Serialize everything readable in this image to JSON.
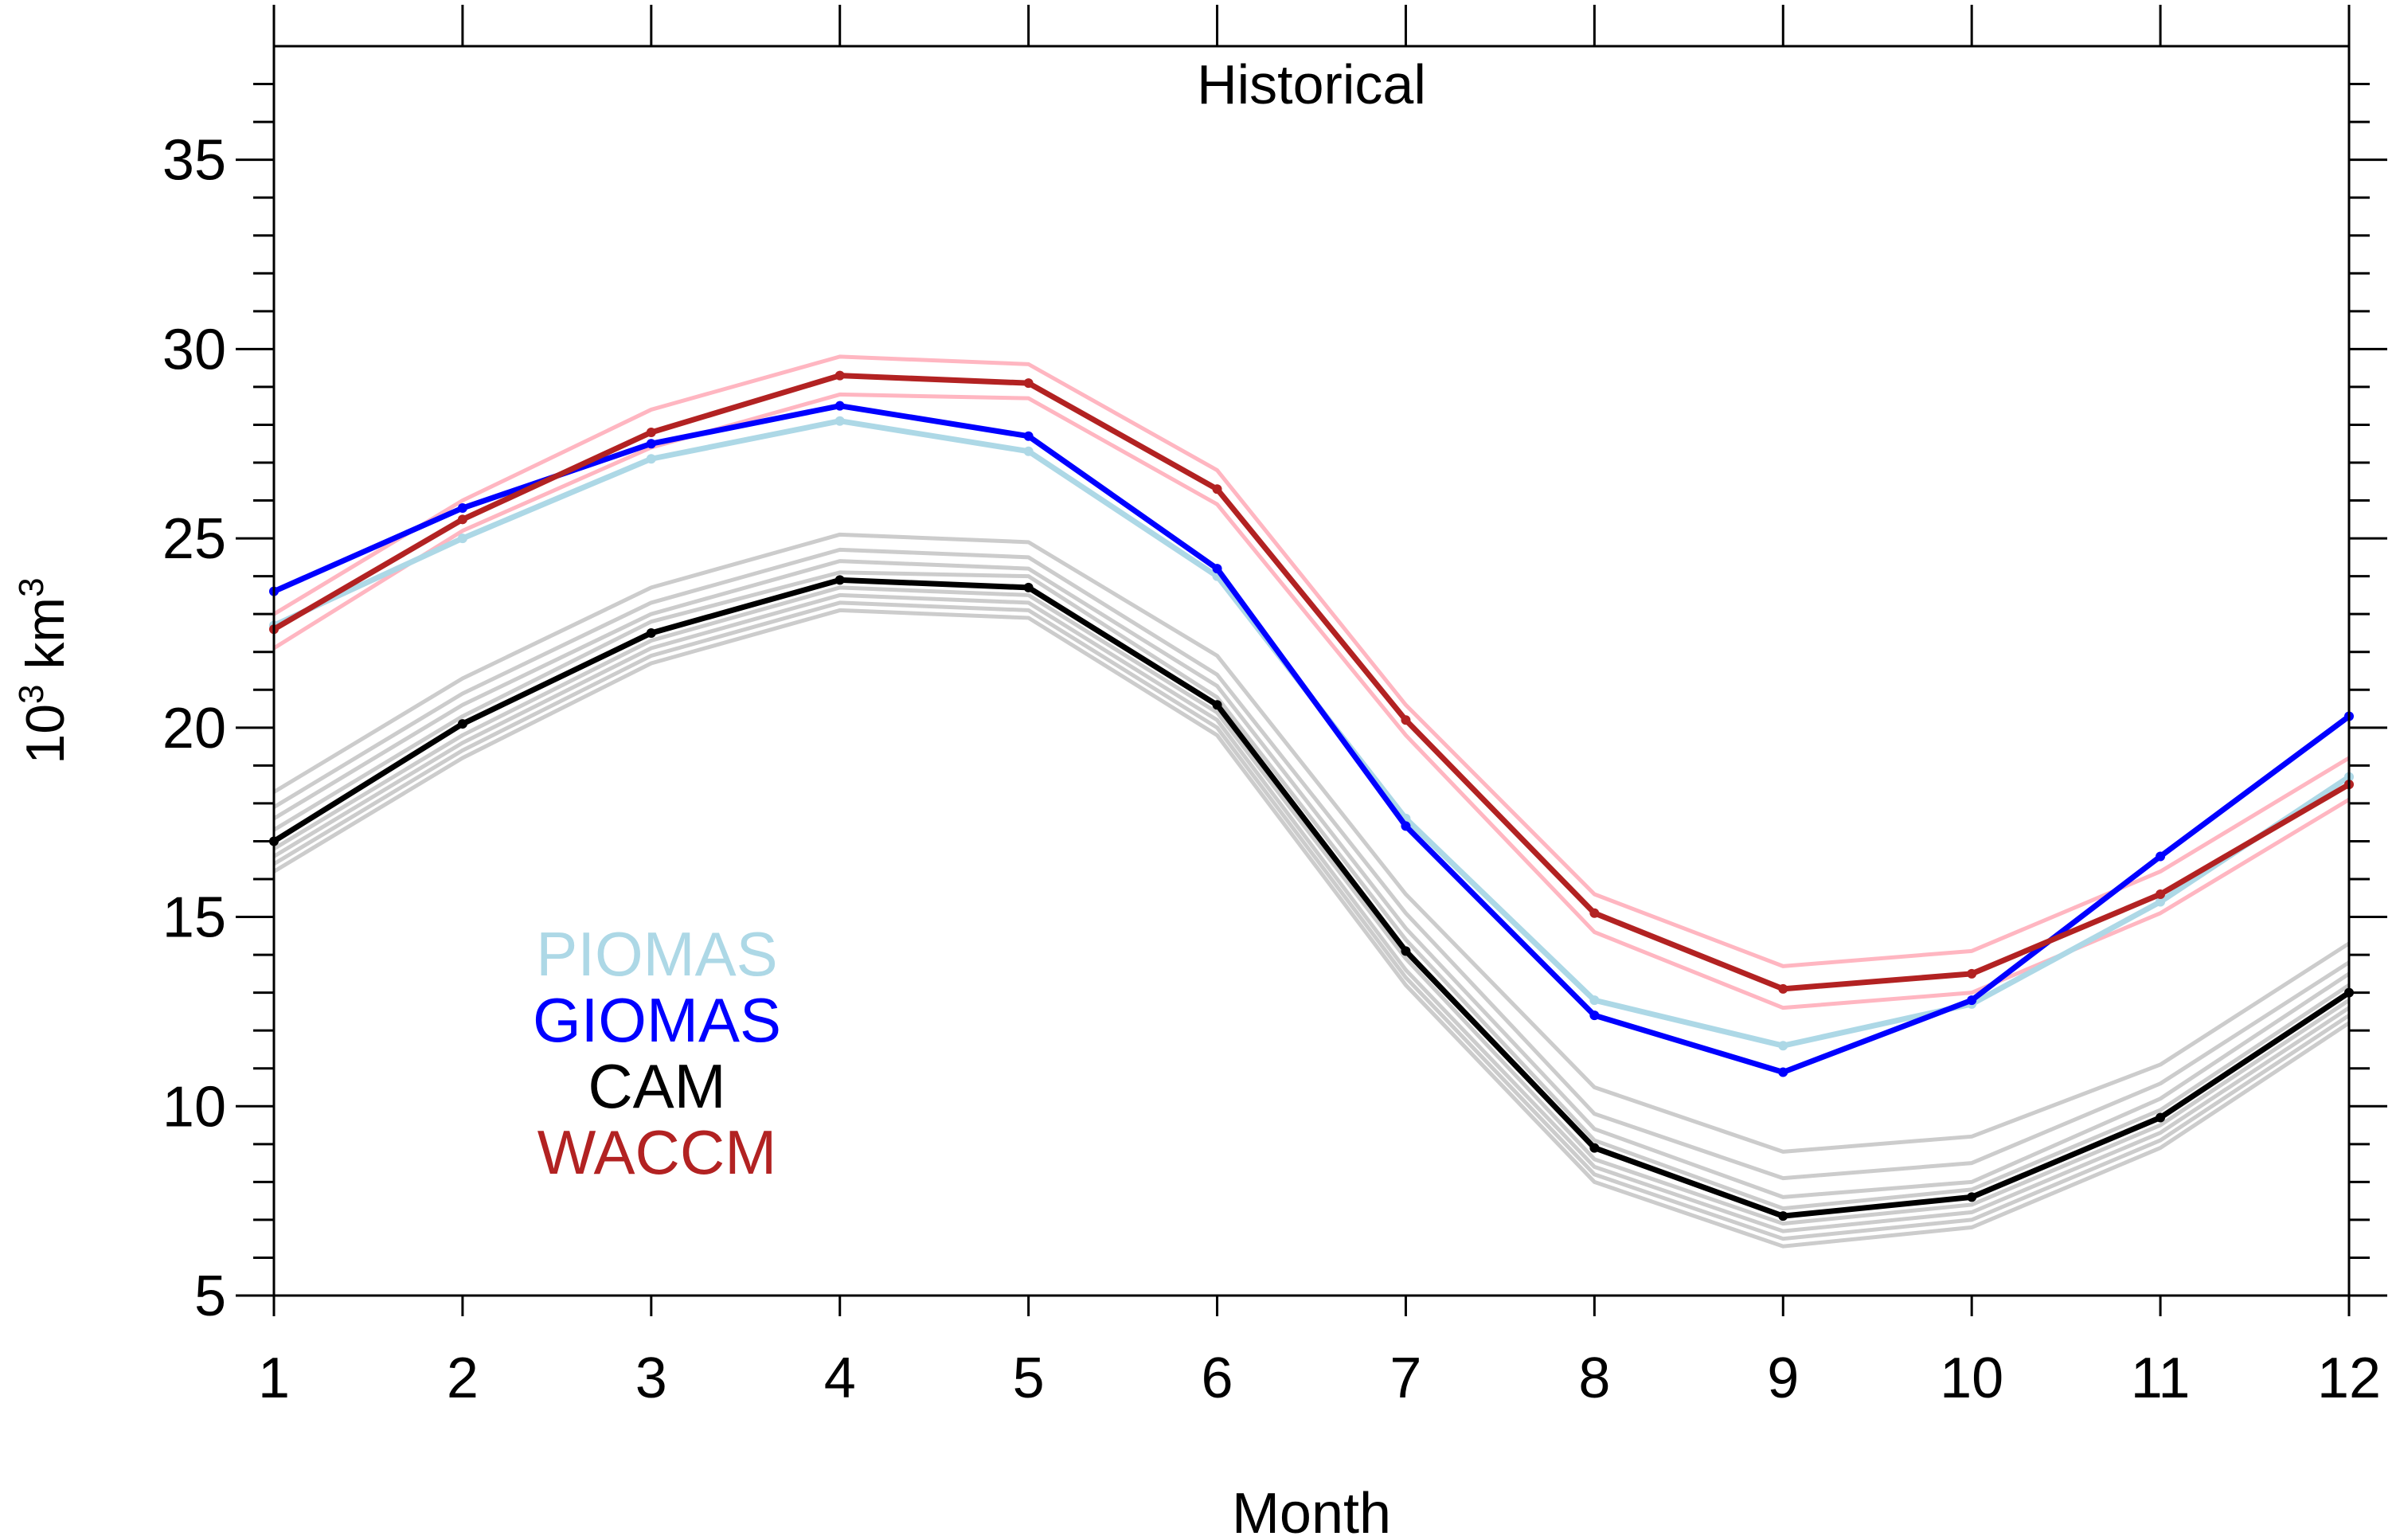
{
  "chart_data": {
    "type": "line",
    "title": "Historical",
    "xlabel": "Month",
    "ylabel_base": "10",
    "ylabel_exp": "3",
    "ylabel_unit": "km",
    "ylabel_unit_exp": "3",
    "x": [
      1,
      2,
      3,
      4,
      5,
      6,
      7,
      8,
      9,
      10,
      11,
      12
    ],
    "xlim": [
      1,
      12
    ],
    "ylim": [
      5,
      38
    ],
    "yticks": [
      5,
      10,
      15,
      20,
      25,
      30,
      35
    ],
    "xticks": [
      1,
      2,
      3,
      4,
      5,
      6,
      7,
      8,
      9,
      10,
      11,
      12
    ],
    "grid": false,
    "legend_placement": "lower-left",
    "legend": [
      {
        "name": "PIOMAS",
        "color": "#add8e6"
      },
      {
        "name": "GIOMAS",
        "color": "#0000ff"
      },
      {
        "name": "CAM",
        "color": "#000000"
      },
      {
        "name": "WACCM",
        "color": "#b22222"
      }
    ],
    "series": [
      {
        "name": "PIOMAS",
        "color": "#add8e6",
        "width": "main",
        "values": [
          22.7,
          25.0,
          27.1,
          28.1,
          27.3,
          24.0,
          17.6,
          12.8,
          11.6,
          12.7,
          15.4,
          18.7
        ]
      },
      {
        "name": "GIOMAS",
        "color": "#0000ff",
        "width": "main",
        "values": [
          23.6,
          25.8,
          27.5,
          28.5,
          27.7,
          24.2,
          17.4,
          12.4,
          10.9,
          12.8,
          16.6,
          20.3
        ]
      },
      {
        "name": "CAM",
        "color": "#000000",
        "width": "main",
        "values": [
          17.0,
          20.1,
          22.5,
          23.9,
          23.7,
          20.6,
          14.1,
          8.9,
          7.1,
          7.6,
          9.7,
          13.0
        ]
      },
      {
        "name": "WACCM",
        "color": "#b22222",
        "width": "main",
        "values": [
          22.6,
          25.5,
          27.8,
          29.3,
          29.1,
          26.3,
          20.2,
          15.1,
          13.1,
          13.5,
          15.6,
          18.5
        ]
      }
    ],
    "ensemble_members": [
      {
        "group": "WACCM",
        "color": "#ffb6c1",
        "values": [
          23.0,
          26.0,
          28.4,
          29.8,
          29.6,
          26.8,
          20.6,
          15.6,
          13.7,
          14.1,
          16.2,
          19.2
        ]
      },
      {
        "group": "WACCM",
        "color": "#ffb6c1",
        "values": [
          22.1,
          25.2,
          27.4,
          28.8,
          28.7,
          25.9,
          19.8,
          14.6,
          12.6,
          13.0,
          15.1,
          18.1
        ]
      },
      {
        "group": "CAM",
        "color": "#cccccc",
        "values": [
          18.3,
          21.3,
          23.7,
          25.1,
          24.9,
          21.9,
          15.6,
          10.5,
          8.8,
          9.2,
          11.1,
          14.3
        ]
      },
      {
        "group": "CAM",
        "color": "#cccccc",
        "values": [
          17.9,
          20.9,
          23.3,
          24.7,
          24.5,
          21.4,
          15.1,
          9.8,
          8.1,
          8.5,
          10.6,
          13.8
        ]
      },
      {
        "group": "CAM",
        "color": "#cccccc",
        "values": [
          17.6,
          20.6,
          23.0,
          24.4,
          24.2,
          21.1,
          14.7,
          9.4,
          7.6,
          8.0,
          10.2,
          13.5
        ]
      },
      {
        "group": "CAM",
        "color": "#cccccc",
        "values": [
          17.3,
          20.3,
          22.8,
          24.1,
          24.0,
          20.8,
          14.4,
          9.1,
          7.3,
          7.8,
          9.9,
          13.2
        ]
      },
      {
        "group": "CAM",
        "color": "#cccccc",
        "values": [
          16.8,
          19.8,
          22.3,
          23.7,
          23.5,
          20.4,
          13.9,
          8.6,
          6.9,
          7.4,
          9.5,
          12.8
        ]
      },
      {
        "group": "CAM",
        "color": "#cccccc",
        "values": [
          16.6,
          19.6,
          22.1,
          23.5,
          23.3,
          20.2,
          13.6,
          8.4,
          6.7,
          7.2,
          9.3,
          12.6
        ]
      },
      {
        "group": "CAM",
        "color": "#cccccc",
        "values": [
          16.4,
          19.4,
          21.9,
          23.3,
          23.1,
          20.0,
          13.4,
          8.2,
          6.5,
          7.0,
          9.1,
          12.4
        ]
      },
      {
        "group": "CAM",
        "color": "#cccccc",
        "values": [
          16.2,
          19.2,
          21.7,
          23.1,
          22.9,
          19.8,
          13.2,
          8.0,
          6.3,
          6.8,
          8.9,
          12.2
        ]
      }
    ]
  }
}
